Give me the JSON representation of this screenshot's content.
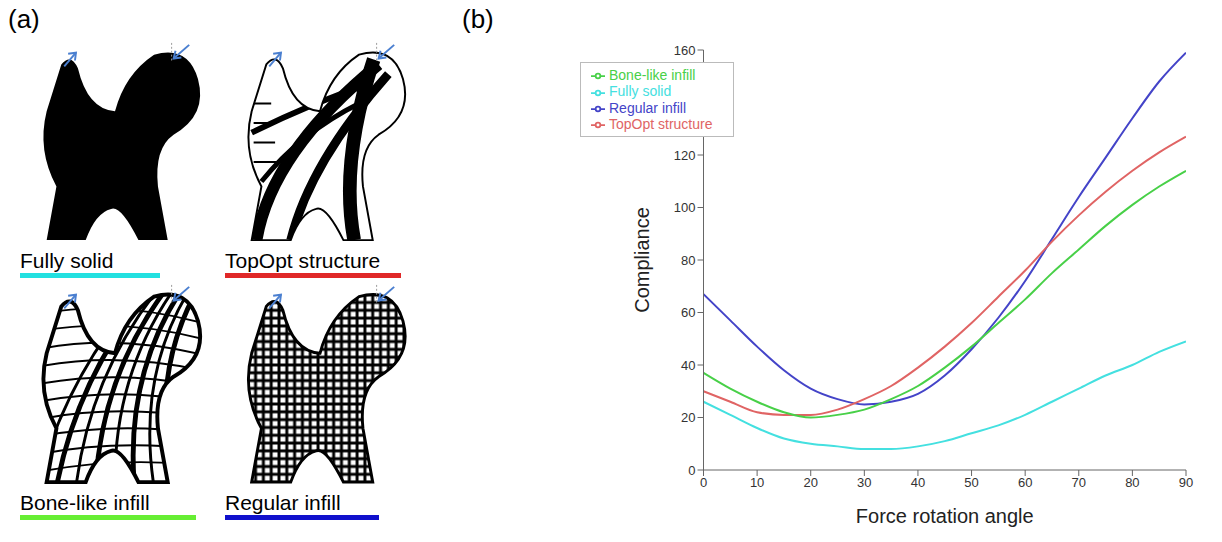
{
  "panel_labels": [
    "(a)",
    "(b)"
  ],
  "shapes": [
    {
      "label": "Fully solid",
      "color": "#22e0e0"
    },
    {
      "label": "TopOpt structure",
      "color": "#e02828"
    },
    {
      "label": "Bone-like infill",
      "color": "#66ee33"
    },
    {
      "label": "Regular infill",
      "color": "#1010cc"
    }
  ],
  "chart_data": {
    "type": "line",
    "x_label": "Force rotation angle",
    "y_label": "Compliance",
    "x": [
      0,
      5,
      10,
      15,
      20,
      25,
      30,
      35,
      40,
      45,
      50,
      55,
      60,
      65,
      70,
      75,
      80,
      85,
      90
    ],
    "series": [
      {
        "name": "Regular infill",
        "color": "#4444c8",
        "values": [
          67,
          57,
          47,
          38,
          31,
          27,
          25,
          26,
          29,
          36,
          46,
          58,
          72,
          88,
          104,
          119,
          134,
          148,
          159
        ]
      },
      {
        "name": "TopOpt structure",
        "color": "#e06464",
        "values": [
          30,
          26,
          22,
          21,
          21,
          23,
          27,
          32,
          39,
          47,
          56,
          66,
          76,
          87,
          97,
          106,
          114,
          121,
          127
        ]
      },
      {
        "name": "Bone-like infill",
        "color": "#48d048",
        "values": [
          37,
          31,
          26,
          22,
          20,
          21,
          23,
          27,
          32,
          39,
          47,
          56,
          65,
          75,
          84,
          93,
          101,
          108,
          114
        ]
      },
      {
        "name": "Fully solid",
        "color": "#44e0e0",
        "values": [
          26,
          21,
          16,
          12,
          10,
          9,
          8,
          8,
          9,
          11,
          14,
          17,
          21,
          26,
          31,
          36,
          40,
          45,
          49
        ]
      }
    ],
    "xlim": [
      0,
      90
    ],
    "xticks": [
      0,
      10,
      20,
      30,
      40,
      50,
      60,
      70,
      80,
      90
    ],
    "ylim": [
      0,
      160
    ],
    "yticks": [
      0,
      20,
      40,
      60,
      80,
      100,
      120,
      140,
      160
    ],
    "legend": "upper left"
  }
}
